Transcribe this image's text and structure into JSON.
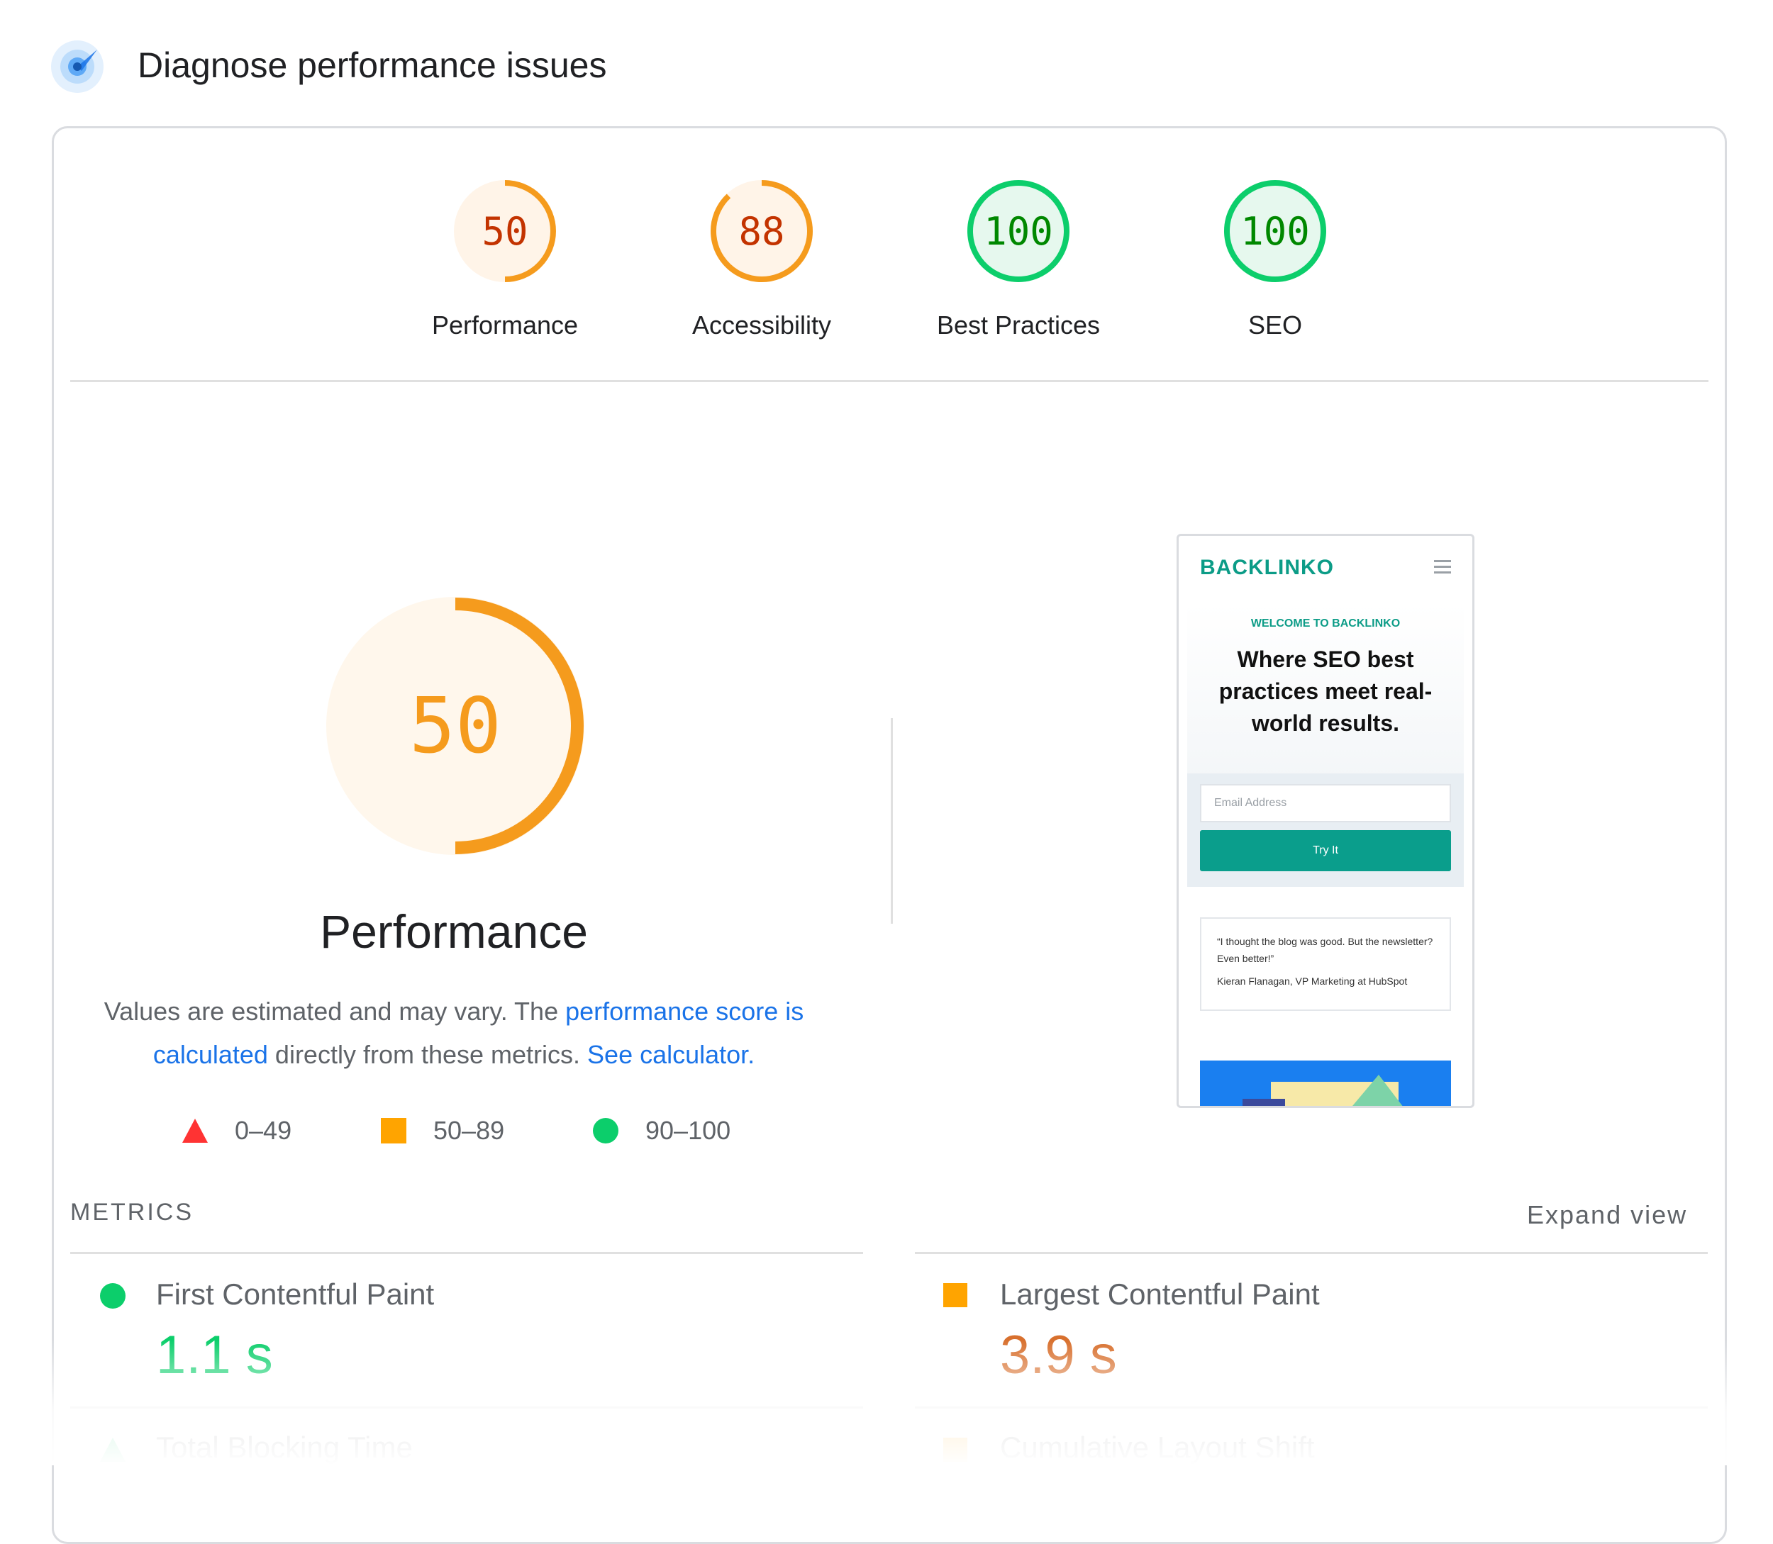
{
  "header": {
    "title": "Diagnose performance issues",
    "icon": "lighthouse-compass-icon"
  },
  "categories": [
    {
      "label": "Performance",
      "score": "50",
      "score_value": 50,
      "status": "average",
      "color": "#f59b1d",
      "text_color": "#c33300"
    },
    {
      "label": "Accessibility",
      "score": "88",
      "score_value": 88,
      "status": "average",
      "color": "#f59b1d",
      "text_color": "#c33300"
    },
    {
      "label": "Best Practices",
      "score": "100",
      "score_value": 100,
      "status": "pass",
      "color": "#0cce6b",
      "text_color": "#008800"
    },
    {
      "label": "SEO",
      "score": "100",
      "score_value": 100,
      "status": "pass",
      "color": "#0cce6b",
      "text_color": "#008800"
    }
  ],
  "main_gauge": {
    "score": "50",
    "score_value": 50,
    "title": "Performance",
    "color": "#f59b1d"
  },
  "description": {
    "text_before": "Values are estimated and may vary. The ",
    "link1": "performance score is calculated",
    "text_middle": " directly from these metrics. ",
    "link2": "See calculator."
  },
  "legend": [
    {
      "range": "0–49",
      "shape": "triangle-icon",
      "color": "#ff3333"
    },
    {
      "range": "50–89",
      "shape": "square-icon",
      "color": "#ffa400"
    },
    {
      "range": "90–100",
      "shape": "circle-icon",
      "color": "#0cce6b"
    }
  ],
  "preview": {
    "logo": "BACKLINKO",
    "welcome": "WELCOME TO BACKLINKO",
    "headline": "Where SEO best practices meet real-world results.",
    "email_placeholder": "Email Address",
    "button": "Try It",
    "quote": "“I thought the blog was good. But the newsletter? Even better!”",
    "quote_author": "Kieran Flanagan, VP Marketing at HubSpot"
  },
  "metrics": {
    "title": "METRICS",
    "expand_label": "Expand view",
    "items": [
      {
        "name": "First Contentful Paint",
        "value": "1.1 s",
        "status": "pass",
        "color": "#0cce6b",
        "value_color": "#0cce6b",
        "icon": "circle-icon"
      },
      {
        "name": "Largest Contentful Paint",
        "value": "3.9 s",
        "status": "average",
        "color": "#ffa400",
        "value_color": "#d8702e",
        "icon": "square-icon"
      },
      {
        "name": "Total Blocking Time",
        "value": "",
        "status": "pass",
        "color": "#0cce6b",
        "icon": "triangle-icon"
      },
      {
        "name": "Cumulative Layout Shift",
        "value": "",
        "status": "average",
        "color": "#ffa400",
        "icon": "square-icon"
      }
    ]
  }
}
